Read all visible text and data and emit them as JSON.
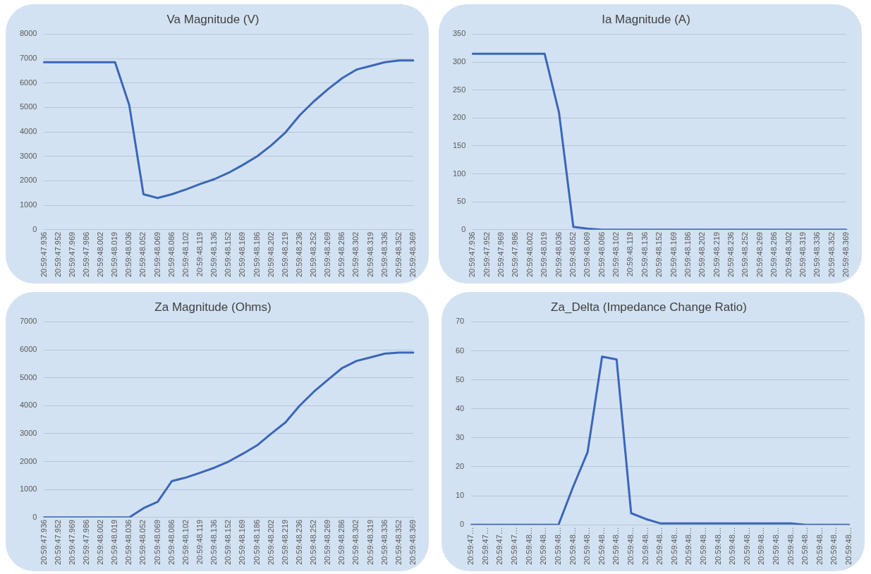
{
  "chart_data": [
    {
      "type": "line",
      "title": "Va Magnitude (V)",
      "categories": [
        "20:59:47.936",
        "20:59:47.952",
        "20:59:47.969",
        "20:59:47.986",
        "20:59:48.002",
        "20:59:48.019",
        "20:59:48.036",
        "20:59:48.052",
        "20:59:48.069",
        "20:59:48.086",
        "20:59:48.102",
        "20:59:48.119",
        "20:59:48.136",
        "20:59:48.152",
        "20:59:48.169",
        "20:59:48.186",
        "20:59:48.202",
        "20:59:48.219",
        "20:59:48.236",
        "20:59:48.252",
        "20:59:48.269",
        "20:59:48.286",
        "20:59:48.302",
        "20:59:48.319",
        "20:59:48.336",
        "20:59:48.352",
        "20:59:48.369"
      ],
      "series": [
        {
          "color": "#3a66b9",
          "values": [
            6850,
            6850,
            6850,
            6850,
            6850,
            6850,
            5100,
            1450,
            1300,
            1450,
            1650,
            1870,
            2070,
            2330,
            2650,
            3000,
            3450,
            3980,
            4680,
            5250,
            5750,
            6200,
            6550,
            6700,
            6850,
            6920,
            6920
          ]
        }
      ],
      "ylim": [
        0,
        8000
      ],
      "yticks": [
        0,
        1000,
        2000,
        3000,
        4000,
        5000,
        6000,
        7000,
        8000
      ],
      "grid": "y",
      "legend": false,
      "marker": "none"
    },
    {
      "type": "line",
      "title": "Ia Magnitude (A)",
      "categories": [
        "20:59:47.936",
        "20:59:47.952",
        "20:59:47.969",
        "20:59:47.986",
        "20:59:48.002",
        "20:59:48.019",
        "20:59:48.036",
        "20:59:48.052",
        "20:59:48.069",
        "20:59:48.086",
        "20:59:48.102",
        "20:59:48.119",
        "20:59:48.136",
        "20:59:48.152",
        "20:59:48.169",
        "20:59:48.186",
        "20:59:48.202",
        "20:59:48.219",
        "20:59:48.236",
        "20:59:48.252",
        "20:59:48.269",
        "20:59:48.286",
        "20:59:48.302",
        "20:59:48.319",
        "20:59:48.336",
        "20:59:48.352",
        "20:59:48.369"
      ],
      "series": [
        {
          "color": "#3a66b9",
          "values": [
            315,
            315,
            315,
            315,
            315,
            315,
            210,
            5,
            2,
            0,
            0,
            0,
            0,
            0,
            0,
            0,
            0,
            0,
            0,
            0,
            0,
            0,
            0,
            0,
            0,
            0,
            0
          ]
        }
      ],
      "ylim": [
        0,
        350
      ],
      "yticks": [
        0,
        50,
        100,
        150,
        200,
        250,
        300,
        350
      ],
      "grid": "y",
      "legend": false,
      "marker": "none"
    },
    {
      "type": "line",
      "title": "Za Magnitude (Ohms)",
      "categories": [
        "20:59:47.936",
        "20:59:47.952",
        "20:59:47.969",
        "20:59:47.986",
        "20:59:48.002",
        "20:59:48.019",
        "20:59:48.036",
        "20:59:48.052",
        "20:59:48.069",
        "20:59:48.086",
        "20:59:48.102",
        "20:59:48.119",
        "20:59:48.136",
        "20:59:48.152",
        "20:59:48.169",
        "20:59:48.186",
        "20:59:48.202",
        "20:59:48.219",
        "20:59:48.236",
        "20:59:48.252",
        "20:59:48.269",
        "20:59:48.286",
        "20:59:48.302",
        "20:59:48.319",
        "20:59:48.336",
        "20:59:48.352",
        "20:59:48.369"
      ],
      "series": [
        {
          "color": "#3a66b9",
          "values": [
            0,
            0,
            0,
            0,
            0,
            0,
            0,
            330,
            560,
            1300,
            1430,
            1600,
            1780,
            2000,
            2280,
            2580,
            3000,
            3400,
            4000,
            4500,
            4930,
            5350,
            5600,
            5730,
            5860,
            5900,
            5900
          ]
        }
      ],
      "ylim": [
        0,
        7000
      ],
      "yticks": [
        0,
        1000,
        2000,
        3000,
        4000,
        5000,
        6000,
        7000
      ],
      "grid": "y",
      "legend": false,
      "marker": "none"
    },
    {
      "type": "line",
      "title": "Za_Delta (Impedance Change Ratio)",
      "categories": [
        "20:59:47…",
        "20:59:47…",
        "20:59:47…",
        "20:59:47…",
        "20:59:48…",
        "20:59:48…",
        "20:59:48…",
        "20:59:48…",
        "20:59:48…",
        "20:59:48…",
        "20:59:48…",
        "20:59:48…",
        "20:59:48…",
        "20:59:48…",
        "20:59:48…",
        "20:59:48…",
        "20:59:48…",
        "20:59:48…",
        "20:59:48…",
        "20:59:48…",
        "20:59:48…",
        "20:59:48…",
        "20:59:48…",
        "20:59:48…",
        "20:59:48…",
        "20:59:48…",
        "20:59:48…"
      ],
      "series": [
        {
          "color": "#3a66b9",
          "values": [
            0,
            0,
            0,
            0,
            0,
            0,
            0,
            13,
            25,
            58,
            57,
            4,
            2,
            0.5,
            0.5,
            0.5,
            0.5,
            0.5,
            0.5,
            0.5,
            0.5,
            0.5,
            0.5,
            0,
            0,
            0,
            0
          ]
        }
      ],
      "ylim": [
        0,
        70
      ],
      "yticks": [
        0,
        10,
        20,
        30,
        40,
        50,
        60,
        70
      ],
      "grid": "y",
      "legend": false,
      "marker": "none"
    }
  ]
}
